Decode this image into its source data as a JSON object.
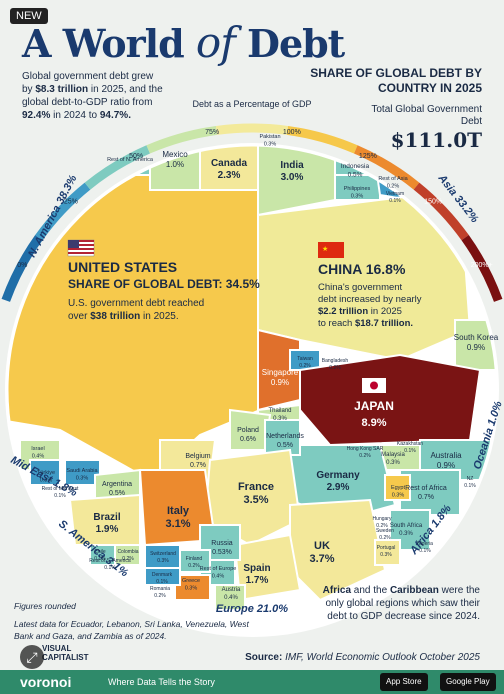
{
  "badge": "NEW",
  "title_part1": "A World",
  "title_of": "of",
  "title_part2": "Debt",
  "intro": {
    "line1": "Global government debt grew",
    "line2_prefix": "by ",
    "line2_bold": "$8.3 trillion",
    "line2_suffix": " in 2025, and the",
    "line3": "global debt-to-GDP ratio from",
    "line4_bold1": "92.4%",
    "line4_mid": " in 2024 to ",
    "line4_bold2": "94.7%."
  },
  "subtitle": "SHARE OF GLOBAL DEBT BY COUNTRY IN 2025",
  "total_label": "Total Global Government Debt",
  "total_value": "$111.0T",
  "scale": {
    "title": "Debt as a Percentage of GDP",
    "ticks": [
      "0%",
      "25%",
      "50%",
      "75%",
      "100%",
      "125%",
      "150%",
      "200%+"
    ],
    "colors": [
      "#1f6ea8",
      "#3f9bc6",
      "#7ecbc0",
      "#c9e6a8",
      "#f3ea9a",
      "#f6c84a",
      "#ec8a2e",
      "#c0402a",
      "#7a1010"
    ]
  },
  "regions": {
    "n_america": "N. America 38.3%",
    "asia": "Asia 33.2%",
    "oceania": "Oceania 1.0%",
    "africa": "Africa 1.8%",
    "europe": "Europe 21.0%",
    "s_america": "S. America 3.1%",
    "mid_east": "Mid East 1.8%"
  },
  "us": {
    "name": "UNITED STATES",
    "share": "SHARE OF GLOBAL DEBT: 34.5%",
    "note1_prefix": "U.S. government debt reached",
    "note2_prefix": "over ",
    "note2_bold": "$38 trillion",
    "note2_suffix": " in 2025."
  },
  "china": {
    "name": "CHINA 16.8%",
    "note1": "China's government",
    "note2": "debt increased by nearly",
    "note3_bold": "$2.2 trillion",
    "note3_suffix": " in 2025",
    "note4_prefix": "to reach ",
    "note4_bold": "$18.7 trillion."
  },
  "chart_data": {
    "type": "treemap",
    "title": "A World of Debt",
    "subtitle": "Share of Global Debt by Country in 2025",
    "total": "$111.0T",
    "color_scale": "Debt as a Percentage of GDP",
    "cells": [
      {
        "name": "United States",
        "value": "34.5%"
      },
      {
        "name": "China",
        "value": "16.8%"
      },
      {
        "name": "Japan",
        "value": "8.9%"
      },
      {
        "name": "UK",
        "value": "3.7%"
      },
      {
        "name": "France",
        "value": "3.5%"
      },
      {
        "name": "Italy",
        "value": "3.1%"
      },
      {
        "name": "India",
        "value": "3.0%"
      },
      {
        "name": "Germany",
        "value": "2.9%"
      },
      {
        "name": "Canada",
        "value": "2.3%"
      },
      {
        "name": "Brazil",
        "value": "1.9%"
      },
      {
        "name": "Spain",
        "value": "1.7%"
      },
      {
        "name": "Mexico",
        "value": "1.0%"
      },
      {
        "name": "South Korea",
        "value": "0.9%"
      },
      {
        "name": "Singapore",
        "value": "0.9%"
      },
      {
        "name": "Australia",
        "value": "0.9%"
      },
      {
        "name": "Belgium",
        "value": "0.7%"
      },
      {
        "name": "Rest of Africa",
        "value": "0.7%"
      },
      {
        "name": "Poland",
        "value": "0.6%"
      },
      {
        "name": "Netherlands",
        "value": "0.5%"
      },
      {
        "name": "Argentina",
        "value": "0.5%"
      },
      {
        "name": "Indonesia",
        "value": "0.5%"
      },
      {
        "name": "Russia",
        "value": "0.53%"
      },
      {
        "name": "Rest of Europe",
        "value": "0.4%"
      },
      {
        "name": "Austria",
        "value": "0.4%"
      },
      {
        "name": "Israel",
        "value": "0.4%"
      },
      {
        "name": "Egypt",
        "value": "0.3%"
      },
      {
        "name": "Pakistan",
        "value": "0.3%"
      },
      {
        "name": "Philippines",
        "value": "0.3%"
      },
      {
        "name": "Thailand",
        "value": "0.3%"
      }
    ]
  },
  "cells": {
    "us_flag": "flag-us",
    "canada": {
      "name": "Canada",
      "value": "2.3%"
    },
    "mexico": {
      "name": "Mexico",
      "value": "1.0%"
    },
    "rest_na": {
      "name": "Rest of N. America",
      "value": ""
    },
    "india": {
      "name": "India",
      "value": "3.0%"
    },
    "pakistan": {
      "name": "Pakistan",
      "value": "0.3%"
    },
    "indonesia": {
      "name": "Indonesia",
      "value": "0.5%"
    },
    "rest_asia": {
      "name": "Rest of Asia",
      "value": "0.2%"
    },
    "philippines": {
      "name": "Philippines",
      "value": "0.3%"
    },
    "vietnam": {
      "name": "Vietnam",
      "value": "0.1%"
    },
    "s_korea": {
      "name": "South Korea",
      "value": "0.9%"
    },
    "singapore": {
      "name": "Singapore",
      "value": "0.9%"
    },
    "taiwan": {
      "name": "Taiwan",
      "value": "0.2%"
    },
    "bangladesh": {
      "name": "Bangladesh",
      "value": "0.2%"
    },
    "japan": {
      "name": "JAPAN",
      "value": "8.9%"
    },
    "thailand": {
      "name": "Thailand",
      "value": "0.3%"
    },
    "malaysia": {
      "name": "Malaysia",
      "value": "0.3%"
    },
    "kazakhstan": {
      "name": "Kazakhstan",
      "value": "0.1%"
    },
    "hk": {
      "name": "Hong Kong SAR",
      "value": "0.2%"
    },
    "australia": {
      "name": "Australia",
      "value": "0.9%"
    },
    "nz": {
      "name": "NZ",
      "value": "0.1%"
    },
    "egypt": {
      "name": "Egypt",
      "value": "0.3%"
    },
    "rest_africa": {
      "name": "Rest of Africa",
      "value": "0.7%"
    },
    "s_africa": {
      "name": "South Africa",
      "value": "0.3%"
    },
    "nigeria": {
      "name": "Nigeria",
      "value": "0.1%"
    },
    "germany": {
      "name": "Germany",
      "value": "2.9%"
    },
    "poland": {
      "name": "Poland",
      "value": "0.6%"
    },
    "netherlands": {
      "name": "Netherlands",
      "value": "0.5%"
    },
    "belgium": {
      "name": "Belgium",
      "value": "0.7%"
    },
    "france": {
      "name": "France",
      "value": "3.5%"
    },
    "italy": {
      "name": "Italy",
      "value": "3.1%"
    },
    "uk": {
      "name": "UK",
      "value": "3.7%"
    },
    "spain": {
      "name": "Spain",
      "value": "1.7%"
    },
    "russia": {
      "name": "Russia",
      "value": "0.53%"
    },
    "rest_europe": {
      "name": "Rest of Europe",
      "value": "0.4%"
    },
    "austria": {
      "name": "Austria",
      "value": "0.4%"
    },
    "greece": {
      "name": "Greece",
      "value": "0.3%"
    },
    "switzerland": {
      "name": "Switzerland",
      "value": "0.3%"
    },
    "finland": {
      "name": "Finland",
      "value": "0.2%"
    },
    "denmark": {
      "name": "Denmark",
      "value": "0.1%"
    },
    "romania": {
      "name": "Romania",
      "value": "0.2%"
    },
    "portugal": {
      "name": "Portugal",
      "value": "0.3%"
    },
    "hungary": {
      "name": "Hungary",
      "value": "0.2%"
    },
    "sweden": {
      "name": "Sweden",
      "value": "0.2%"
    },
    "israel": {
      "name": "Israel",
      "value": "0.4%"
    },
    "turkiye": {
      "name": "Türkiye",
      "value": "0.3%"
    },
    "saudi": {
      "name": "Saudi Arabia",
      "value": "0.3%"
    },
    "rest_me": {
      "name": "Rest of Mid East",
      "value": "0.1%"
    },
    "argentina": {
      "name": "Argentina",
      "value": "0.5%"
    },
    "brazil": {
      "name": "Brazil",
      "value": "1.9%"
    },
    "chile": {
      "name": "Chile",
      "value": "0.1%"
    },
    "colombia": {
      "name": "Colombia",
      "value": "0.2%"
    },
    "rest_sa": {
      "name": "Rest of S. America",
      "value": "0.1%"
    }
  },
  "footnote1": "Figures rounded",
  "footnote2": "Latest data for Ecuador, Lebanon, Sri Lanka, Venezuela, West Bank and Gaza, and Zambia as of 2024.",
  "africa_note_bold1": "Africa",
  "africa_note_mid": " and the ",
  "africa_note_bold2": "Caribbean",
  "africa_note_rest": " were the only global regions which saw their debt to GDP decrease since 2024.",
  "source_label": "Source:",
  "source_text": " IMF, World Economic Outlook October 2025",
  "logo_line1": "VISUAL",
  "logo_line2": "CAPITALIST",
  "footer": {
    "brand": "voronoi",
    "tagline": "Where Data Tells the Story",
    "app_store": "App Store",
    "google_play": "Google Play"
  },
  "expand_icon": "expand-icon"
}
